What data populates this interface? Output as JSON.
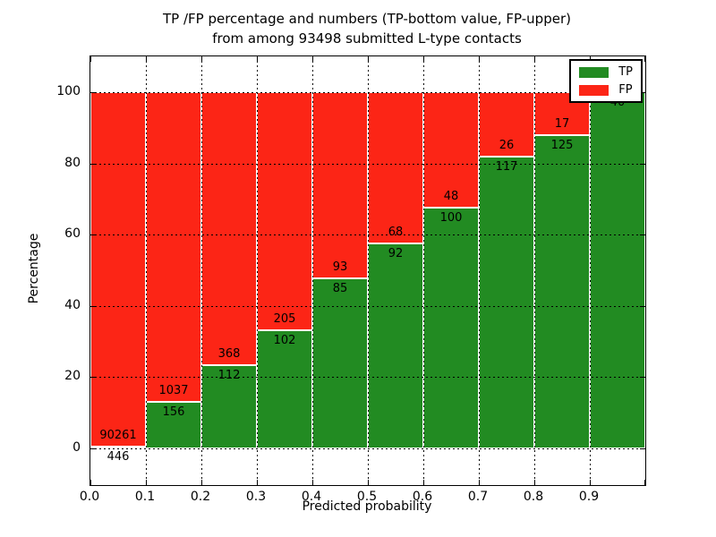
{
  "figure": {
    "title_line1": "TP /FP percentage and numbers (TP-bottom value, FP-upper)",
    "title_line2": "from among 93498 submitted L-type contacts",
    "xlabel": "Predicted probability",
    "ylabel": "Percentage"
  },
  "legend": {
    "items": [
      {
        "label": "TP",
        "color": "#228b22"
      },
      {
        "label": "FP",
        "color": "#fc2516"
      }
    ]
  },
  "chart_data": {
    "type": "bar",
    "variant": "stacked-100-percent",
    "title": "TP /FP percentage and numbers (TP-bottom value, FP-upper) from among 93498 submitted L-type contacts",
    "xlabel": "Predicted probability",
    "ylabel": "Percentage",
    "total_submitted": 93498,
    "xlim": [
      0.0,
      1.0
    ],
    "ylim": [
      -10,
      110
    ],
    "grid": true,
    "legend_position": "upper right",
    "xtick_labels": [
      "0.0",
      "0.1",
      "0.2",
      "0.3",
      "0.4",
      "0.5",
      "0.6",
      "0.7",
      "0.8",
      "0.9"
    ],
    "ytick_values": [
      0,
      20,
      40,
      60,
      80,
      100
    ],
    "bins": [
      "0.0-0.1",
      "0.1-0.2",
      "0.2-0.3",
      "0.3-0.4",
      "0.4-0.5",
      "0.5-0.6",
      "0.6-0.7",
      "0.7-0.8",
      "0.8-0.9",
      "0.9-1.0"
    ],
    "series": [
      {
        "name": "TP",
        "color": "#228b22",
        "counts": [
          446,
          156,
          112,
          102,
          85,
          92,
          100,
          117,
          125,
          40
        ]
      },
      {
        "name": "FP",
        "color": "#fc2516",
        "counts": [
          90261,
          1037,
          368,
          205,
          93,
          68,
          48,
          26,
          17,
          null
        ]
      }
    ],
    "tp_percent": [
      0.49,
      13.08,
      23.33,
      33.22,
      47.75,
      57.5,
      67.57,
      81.82,
      88.03,
      100
    ],
    "tp_labels": [
      "446",
      "156",
      "112",
      "102",
      "85",
      "92",
      "100",
      "117",
      "125",
      "40"
    ],
    "fp_labels": [
      "90261",
      "1037",
      "368",
      "205",
      "93",
      "68",
      "48",
      "26",
      "17",
      ""
    ],
    "note": "FP count label for the 0.9-1.0 bin is hidden behind the legend"
  }
}
